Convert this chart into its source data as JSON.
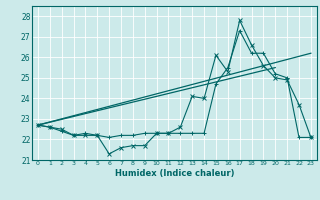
{
  "title": "",
  "xlabel": "Humidex (Indice chaleur)",
  "ylabel": "",
  "bg_color": "#cceaea",
  "grid_color": "#ffffff",
  "line_color": "#006666",
  "xlim": [
    -0.5,
    23.5
  ],
  "ylim": [
    21.0,
    28.5
  ],
  "yticks": [
    21,
    22,
    23,
    24,
    25,
    26,
    27,
    28
  ],
  "xticks": [
    0,
    1,
    2,
    3,
    4,
    5,
    6,
    7,
    8,
    9,
    10,
    11,
    12,
    13,
    14,
    15,
    16,
    17,
    18,
    19,
    20,
    21,
    22,
    23
  ],
  "line1_x": [
    0,
    1,
    2,
    3,
    4,
    5,
    6,
    7,
    8,
    9,
    10,
    11,
    12,
    13,
    14,
    15,
    16,
    17,
    18,
    19,
    20,
    21,
    22,
    23
  ],
  "line1_y": [
    22.7,
    22.6,
    22.5,
    22.2,
    22.2,
    22.2,
    21.3,
    21.6,
    21.7,
    21.7,
    22.3,
    22.3,
    22.6,
    24.1,
    24.0,
    26.1,
    25.3,
    27.8,
    26.6,
    25.6,
    25.0,
    24.9,
    23.7,
    22.1
  ],
  "line2_x": [
    0,
    1,
    2,
    3,
    4,
    5,
    6,
    7,
    8,
    9,
    10,
    11,
    12,
    13,
    14,
    15,
    16,
    17,
    18,
    19,
    20,
    21,
    22,
    23
  ],
  "line2_y": [
    22.7,
    22.6,
    22.4,
    22.2,
    22.3,
    22.2,
    22.1,
    22.2,
    22.2,
    22.3,
    22.3,
    22.3,
    22.3,
    22.3,
    22.3,
    24.7,
    25.5,
    27.3,
    26.2,
    26.2,
    25.2,
    25.0,
    22.1,
    22.1
  ],
  "line3_x": [
    0,
    23
  ],
  "line3_y": [
    22.7,
    26.2
  ],
  "line4_x": [
    0,
    20
  ],
  "line4_y": [
    22.7,
    25.5
  ]
}
